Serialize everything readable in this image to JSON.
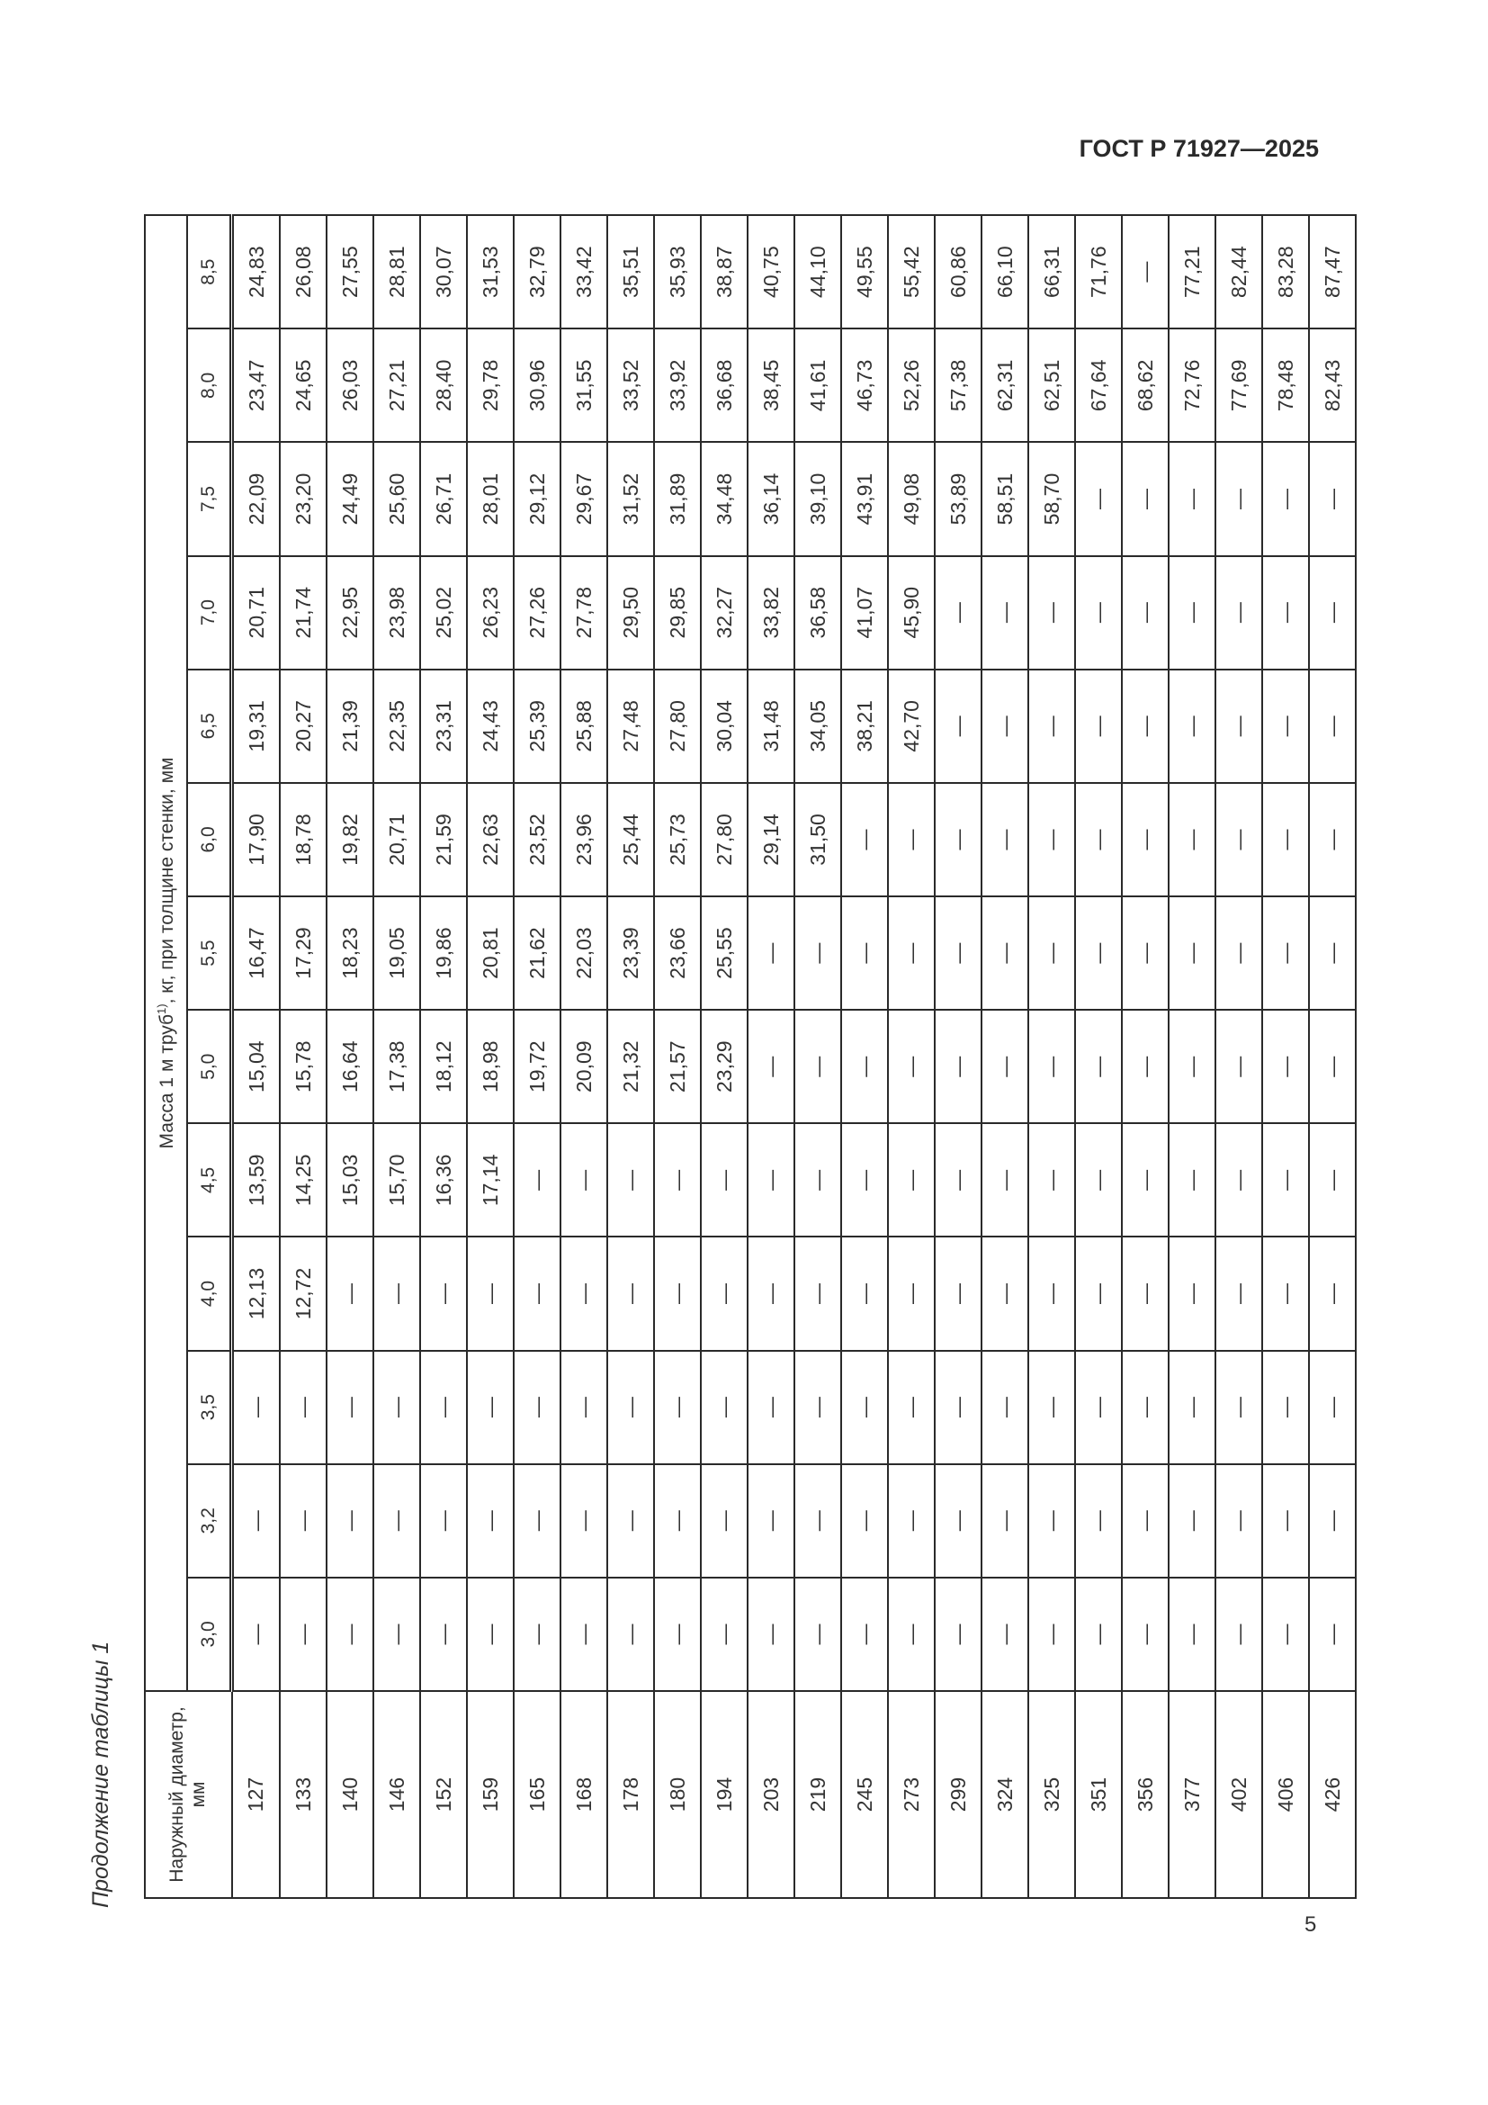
{
  "header": {
    "doc_id": "ГОСТ Р 71927—2025"
  },
  "caption": "Продолжение таблицы 1",
  "page_number": "5",
  "table": {
    "diameter_header": "Наружный диаметр, мм",
    "mass_header": "Масса 1 м труб",
    "mass_header_sup": "1)",
    "mass_header_tail": ", кг, при толщине стенки, мм",
    "thicknesses": [
      "3,0",
      "3,2",
      "3,5",
      "4,0",
      "4,5",
      "5,0",
      "5,5",
      "6,0",
      "6,5",
      "7,0",
      "7,5",
      "8,0",
      "8,5"
    ],
    "rows": [
      {
        "d": "127",
        "v": [
          "—",
          "—",
          "—",
          "12,13",
          "13,59",
          "15,04",
          "16,47",
          "17,90",
          "19,31",
          "20,71",
          "22,09",
          "23,47",
          "24,83"
        ]
      },
      {
        "d": "133",
        "v": [
          "—",
          "—",
          "—",
          "12,72",
          "14,25",
          "15,78",
          "17,29",
          "18,78",
          "20,27",
          "21,74",
          "23,20",
          "24,65",
          "26,08"
        ]
      },
      {
        "d": "140",
        "v": [
          "—",
          "—",
          "—",
          "—",
          "15,03",
          "16,64",
          "18,23",
          "19,82",
          "21,39",
          "22,95",
          "24,49",
          "26,03",
          "27,55"
        ]
      },
      {
        "d": "146",
        "v": [
          "—",
          "—",
          "—",
          "—",
          "15,70",
          "17,38",
          "19,05",
          "20,71",
          "22,35",
          "23,98",
          "25,60",
          "27,21",
          "28,81"
        ]
      },
      {
        "d": "152",
        "v": [
          "—",
          "—",
          "—",
          "—",
          "16,36",
          "18,12",
          "19,86",
          "21,59",
          "23,31",
          "25,02",
          "26,71",
          "28,40",
          "30,07"
        ]
      },
      {
        "d": "159",
        "v": [
          "—",
          "—",
          "—",
          "—",
          "17,14",
          "18,98",
          "20,81",
          "22,63",
          "24,43",
          "26,23",
          "28,01",
          "29,78",
          "31,53"
        ]
      },
      {
        "d": "165",
        "v": [
          "—",
          "—",
          "—",
          "—",
          "—",
          "19,72",
          "21,62",
          "23,52",
          "25,39",
          "27,26",
          "29,12",
          "30,96",
          "32,79"
        ]
      },
      {
        "d": "168",
        "v": [
          "—",
          "—",
          "—",
          "—",
          "—",
          "20,09",
          "22,03",
          "23,96",
          "25,88",
          "27,78",
          "29,67",
          "31,55",
          "33,42"
        ]
      },
      {
        "d": "178",
        "v": [
          "—",
          "—",
          "—",
          "—",
          "—",
          "21,32",
          "23,39",
          "25,44",
          "27,48",
          "29,50",
          "31,52",
          "33,52",
          "35,51"
        ]
      },
      {
        "d": "180",
        "v": [
          "—",
          "—",
          "—",
          "—",
          "—",
          "21,57",
          "23,66",
          "25,73",
          "27,80",
          "29,85",
          "31,89",
          "33,92",
          "35,93"
        ]
      },
      {
        "d": "194",
        "v": [
          "—",
          "—",
          "—",
          "—",
          "—",
          "23,29",
          "25,55",
          "27,80",
          "30,04",
          "32,27",
          "34,48",
          "36,68",
          "38,87"
        ]
      },
      {
        "d": "203",
        "v": [
          "—",
          "—",
          "—",
          "—",
          "—",
          "—",
          "—",
          "29,14",
          "31,48",
          "33,82",
          "36,14",
          "38,45",
          "40,75"
        ]
      },
      {
        "d": "219",
        "v": [
          "—",
          "—",
          "—",
          "—",
          "—",
          "—",
          "—",
          "31,50",
          "34,05",
          "36,58",
          "39,10",
          "41,61",
          "44,10"
        ]
      },
      {
        "d": "245",
        "v": [
          "—",
          "—",
          "—",
          "—",
          "—",
          "—",
          "—",
          "—",
          "38,21",
          "41,07",
          "43,91",
          "46,73",
          "49,55"
        ]
      },
      {
        "d": "273",
        "v": [
          "—",
          "—",
          "—",
          "—",
          "—",
          "—",
          "—",
          "—",
          "42,70",
          "45,90",
          "49,08",
          "52,26",
          "55,42"
        ]
      },
      {
        "d": "299",
        "v": [
          "—",
          "—",
          "—",
          "—",
          "—",
          "—",
          "—",
          "—",
          "—",
          "—",
          "53,89",
          "57,38",
          "60,86"
        ]
      },
      {
        "d": "324",
        "v": [
          "—",
          "—",
          "—",
          "—",
          "—",
          "—",
          "—",
          "—",
          "—",
          "—",
          "58,51",
          "62,31",
          "66,10"
        ]
      },
      {
        "d": "325",
        "v": [
          "—",
          "—",
          "—",
          "—",
          "—",
          "—",
          "—",
          "—",
          "—",
          "—",
          "58,70",
          "62,51",
          "66,31"
        ]
      },
      {
        "d": "351",
        "v": [
          "—",
          "—",
          "—",
          "—",
          "—",
          "—",
          "—",
          "—",
          "—",
          "—",
          "—",
          "67,64",
          "71,76"
        ]
      },
      {
        "d": "356",
        "v": [
          "—",
          "—",
          "—",
          "—",
          "—",
          "—",
          "—",
          "—",
          "—",
          "—",
          "—",
          "68,62",
          "—"
        ]
      },
      {
        "d": "377",
        "v": [
          "—",
          "—",
          "—",
          "—",
          "—",
          "—",
          "—",
          "—",
          "—",
          "—",
          "—",
          "72,76",
          "77,21"
        ]
      },
      {
        "d": "402",
        "v": [
          "—",
          "—",
          "—",
          "—",
          "—",
          "—",
          "—",
          "—",
          "—",
          "—",
          "—",
          "77,69",
          "82,44"
        ]
      },
      {
        "d": "406",
        "v": [
          "—",
          "—",
          "—",
          "—",
          "—",
          "—",
          "—",
          "—",
          "—",
          "—",
          "—",
          "78,48",
          "83,28"
        ]
      },
      {
        "d": "426",
        "v": [
          "—",
          "—",
          "—",
          "—",
          "—",
          "—",
          "—",
          "—",
          "—",
          "—",
          "—",
          "82,43",
          "87,47"
        ]
      }
    ]
  }
}
